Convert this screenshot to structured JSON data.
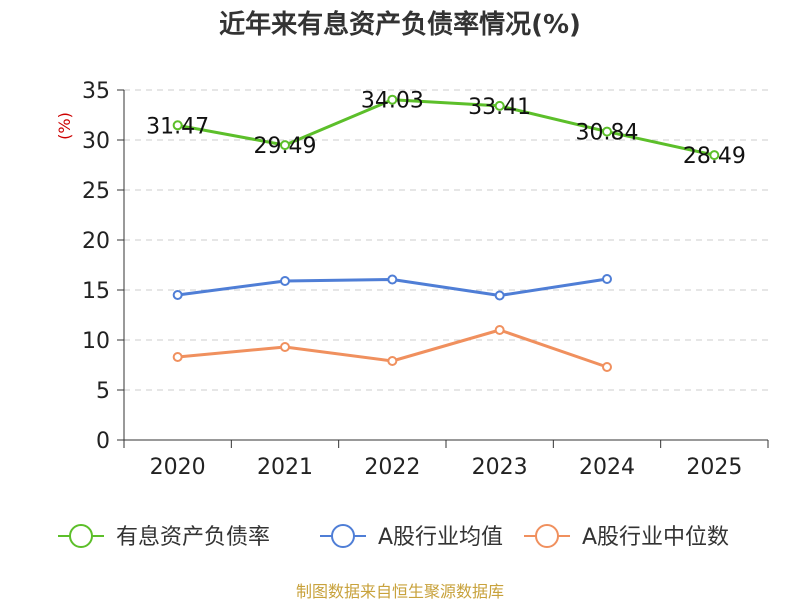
{
  "chart_data": {
    "type": "line",
    "title": "近年来有息资产负债率情况(%)",
    "ylabel": "(%)",
    "xlabel": "",
    "categories": [
      "2020",
      "2021",
      "2022",
      "2023",
      "2024",
      "2025"
    ],
    "ylim": [
      0,
      35
    ],
    "yticks": [
      0,
      5,
      10,
      15,
      20,
      25,
      30,
      35
    ],
    "grid": true,
    "legend_position": "bottom",
    "series": [
      {
        "name": "有息资产负债率",
        "color": "#5cbf2a",
        "values": [
          31.47,
          29.49,
          34.03,
          33.41,
          30.84,
          28.49
        ],
        "labels": [
          "31.47",
          "29.49",
          "34.03",
          "33.41",
          "30.84",
          "28.49"
        ]
      },
      {
        "name": "A股行业均值",
        "color": "#4f7ed6",
        "values": [
          14.5,
          15.9,
          16.05,
          14.45,
          16.1,
          null
        ]
      },
      {
        "name": "A股行业中位数",
        "color": "#f0905e",
        "values": [
          8.3,
          9.3,
          7.9,
          11.0,
          7.3,
          null
        ]
      }
    ]
  },
  "footer": {
    "source": "制图数据来自恒生聚源数据库"
  }
}
